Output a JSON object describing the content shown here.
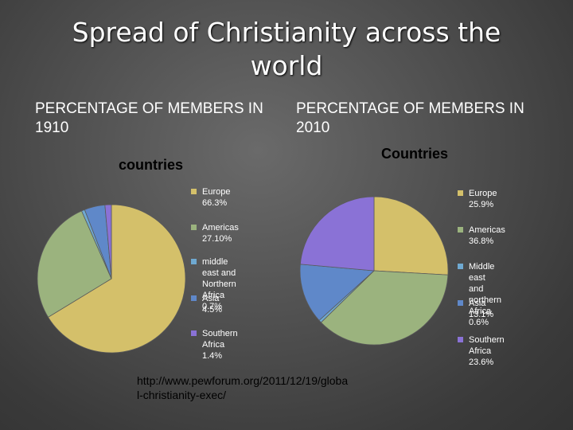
{
  "title": "Spread of Christianity across the world",
  "left_heading": "PERCENTAGE OF MEMBERS IN 1910",
  "right_heading": "PERCENTAGE OF MEMBERS IN 2010",
  "source": "http://www.pewforum.org/2011/12/19/globa\nl-christianity-exec/",
  "chart_data": [
    {
      "type": "pie",
      "title": "countries",
      "legend_position": "right",
      "categories": [
        "Europe",
        "Americas",
        "middle east and Northern Africa",
        "Asia",
        "Southern Africa"
      ],
      "values": [
        66.3,
        27.1,
        0.7,
        4.5,
        1.4
      ],
      "labels": [
        "Europe 66.3%",
        "Americas 27.10%",
        "middle east and\nNorthern Africa\n0.7%",
        "Asia 4.5%",
        "Southern Africa\n1.4%"
      ],
      "colors": [
        "#d4c06a",
        "#9bb37e",
        "#6fa9d1",
        "#5f88c9",
        "#8a72d6"
      ]
    },
    {
      "type": "pie",
      "title": "Countries",
      "legend_position": "right",
      "categories": [
        "Europe",
        "Americas",
        "Middle east and northern Africa",
        "Asia",
        "Southern Africa"
      ],
      "values": [
        25.9,
        36.8,
        0.6,
        13.1,
        23.6
      ],
      "labels": [
        "Europe 25.9%",
        "Americas 36.8%",
        "Middle east and\nnorthern Africa\n0.6%",
        "Asia 13.1%",
        "Southern Africa\n23.6%"
      ],
      "colors": [
        "#d4c06a",
        "#9bb37e",
        "#6fa9d1",
        "#5f88c9",
        "#8a72d6"
      ]
    }
  ]
}
